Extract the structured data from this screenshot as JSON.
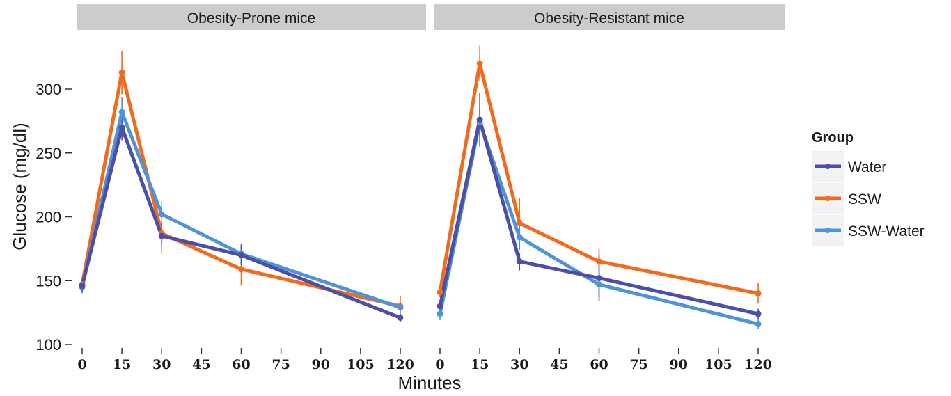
{
  "chart_data": {
    "type": "line",
    "xlabel": "Minutes",
    "ylabel": "Glucose (mg/dl)",
    "ylim": [
      100,
      330
    ],
    "xlim": [
      0,
      120
    ],
    "y_ticks": [
      100,
      150,
      200,
      250,
      300
    ],
    "x_ticks": [
      0,
      15,
      30,
      45,
      60,
      75,
      90,
      105,
      120
    ],
    "grid": false,
    "legend": {
      "title": "Group",
      "position": "right",
      "entries": [
        "Water",
        "SSW",
        "SSW-Water"
      ]
    },
    "colors": {
      "Water": "#4b4fa8",
      "SSW": "#f26b1d",
      "SSW-Water": "#4f94d6"
    },
    "x": [
      0,
      15,
      30,
      60,
      120
    ],
    "panels": [
      {
        "title": "Obesity-Prone mice",
        "series": [
          {
            "name": "Water",
            "values": [
              146,
              270,
              185,
              170,
              121
            ],
            "error": [
              5,
              10,
              6,
              8,
              3
            ]
          },
          {
            "name": "SSW",
            "values": [
              147,
              313,
              187,
              159,
              130
            ],
            "error": [
              5,
              17,
              16,
              13,
              8
            ]
          },
          {
            "name": "SSW-Water",
            "values": [
              145,
              282,
              202,
              171,
              129
            ],
            "error": [
              5,
              12,
              10,
              8,
              3
            ]
          }
        ]
      },
      {
        "title": "Obesity-Resistant mice",
        "series": [
          {
            "name": "Water",
            "values": [
              130,
              276,
              165,
              152,
              124
            ],
            "error": [
              4,
              21,
              7,
              18,
              4
            ]
          },
          {
            "name": "SSW",
            "values": [
              141,
              320,
              195,
              165,
              140
            ],
            "error": [
              4,
              14,
              20,
              10,
              8
            ]
          },
          {
            "name": "SSW-Water",
            "values": [
              124,
              274,
              184,
              147,
              116
            ],
            "error": [
              5,
              10,
              10,
              10,
              4
            ]
          }
        ]
      }
    ]
  }
}
